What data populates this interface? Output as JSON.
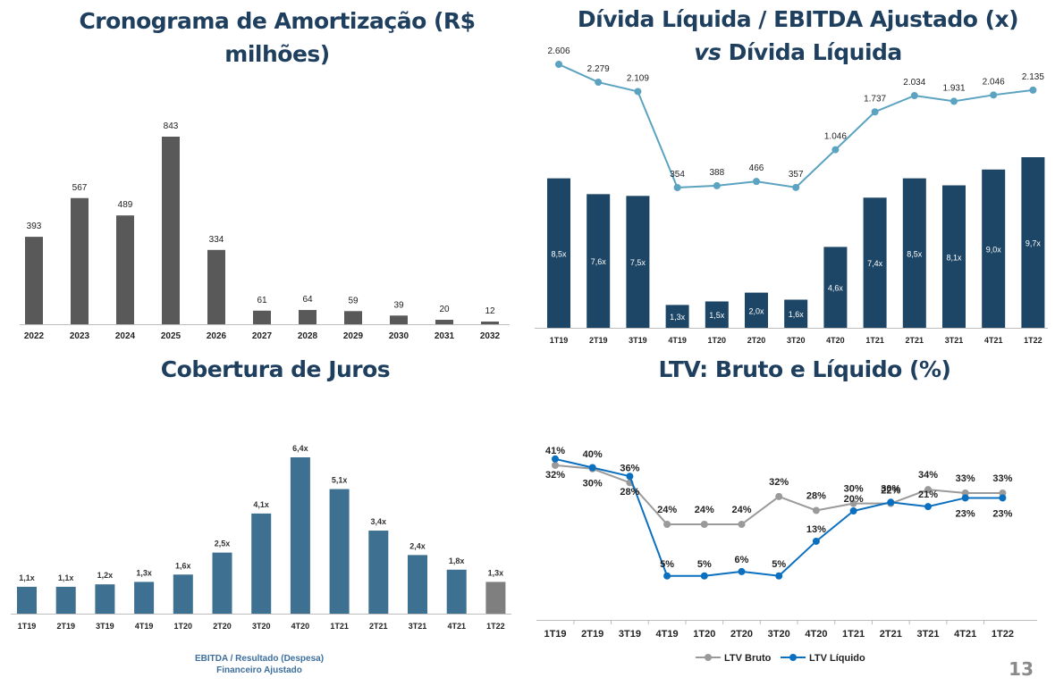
{
  "page_number": "13",
  "colors": {
    "title": "#1f3f5f",
    "amort_bar": "#595959",
    "div_bar": "#1d4666",
    "div_line": "#5ba3c0",
    "juros_bar": "#3d7091",
    "juros_last": "#7f7f7f",
    "ltv_bruto": "#9a9a9a",
    "ltv_liquido": "#0b6fbf"
  },
  "titles": {
    "amort": "Cronograma de Amortização (R$ milhões)",
    "div_part1": "Dívida Líquida / EBITDA Ajustado (x) ",
    "div_vs": "vs",
    "div_part2": " Dívida Líquida",
    "juros": "Cobertura de Juros",
    "ltv": "LTV: Bruto e Líquido (%)"
  },
  "juros_note": "EBITDA / Resultado (Despesa) Financeiro Ajustado",
  "chart_data": [
    {
      "type": "bar",
      "title": "Cronograma de Amortização (R$ milhões)",
      "categories": [
        "2022",
        "2023",
        "2024",
        "2025",
        "2026",
        "2027",
        "2028",
        "2029",
        "2030",
        "2031",
        "2032"
      ],
      "values": [
        393,
        567,
        489,
        843,
        334,
        61,
        64,
        59,
        39,
        20,
        12
      ],
      "labels": [
        "393",
        "567",
        "489",
        "843",
        "334",
        "61",
        "64",
        "59",
        "39",
        "20",
        "12"
      ]
    },
    {
      "type": "bar",
      "title": "Dívida Líquida / EBITDA Ajustado (x) vs Dívida Líquida",
      "categories": [
        "1T19",
        "2T19",
        "3T19",
        "4T19",
        "1T20",
        "2T20",
        "3T20",
        "4T20",
        "1T21",
        "2T21",
        "3T21",
        "4T21",
        "1T22"
      ],
      "series": [
        {
          "kind": "bar",
          "values": [
            8.5,
            7.6,
            7.5,
            1.3,
            1.5,
            2.0,
            1.6,
            4.6,
            7.4,
            8.5,
            8.1,
            9.0,
            9.7
          ],
          "labels": [
            "8,5x",
            "7,6x",
            "7,5x",
            "1,3x",
            "1,5x",
            "2,0x",
            "1,6x",
            "4,6x",
            "7,4x",
            "8,5x",
            "8,1x",
            "9,0x",
            "9,7x"
          ]
        },
        {
          "kind": "line",
          "values": [
            2606,
            2279,
            2109,
            354,
            388,
            466,
            357,
            1046,
            1737,
            2034,
            1931,
            2046,
            2135
          ],
          "labels": [
            "2.606",
            "2.279",
            "2.109",
            "354",
            "388",
            "466",
            "357",
            "1.046",
            "1.737",
            "2.034",
            "1.931",
            "2.046",
            "2.135"
          ]
        }
      ]
    },
    {
      "type": "bar",
      "title": "Cobertura de Juros",
      "categories": [
        "1T19",
        "2T19",
        "3T19",
        "4T19",
        "1T20",
        "2T20",
        "3T20",
        "4T20",
        "1T21",
        "2T21",
        "3T21",
        "4T21",
        "1T22"
      ],
      "values": [
        1.1,
        1.1,
        1.2,
        1.3,
        1.6,
        2.5,
        4.1,
        6.4,
        5.1,
        3.4,
        2.4,
        1.8,
        1.3
      ],
      "labels": [
        "1,1x",
        "1,1x",
        "1,2x",
        "1,3x",
        "1,6x",
        "2,5x",
        "4,1x",
        "6,4x",
        "5,1x",
        "3,4x",
        "2,4x",
        "1,8x",
        "1,3x"
      ]
    },
    {
      "type": "line",
      "title": "LTV: Bruto e Líquido (%)",
      "categories": [
        "1T19",
        "2T19",
        "3T19",
        "4T19",
        "1T20",
        "2T20",
        "3T20",
        "4T20",
        "1T21",
        "2T21",
        "3T21",
        "4T21",
        "1T22"
      ],
      "series": [
        {
          "name": "LTV Bruto",
          "values": [
            41,
            40,
            36,
            24,
            24,
            24,
            32,
            28,
            30,
            30,
            34,
            33,
            33
          ],
          "labels": [
            "41%",
            "40%",
            "36%",
            "24%",
            "24%",
            "24%",
            "32%",
            "28%",
            "30%",
            "30%",
            "34%",
            "33%",
            "33%"
          ]
        },
        {
          "name": "LTV Líquido",
          "values": [
            32,
            30,
            28,
            5,
            5,
            6,
            5,
            13,
            20,
            22,
            21,
            23,
            23
          ],
          "labels": [
            "32%",
            "30%",
            "28%",
            "5%",
            "5%",
            "6%",
            "5%",
            "13%",
            "20%",
            "22%",
            "21%",
            "23%",
            "23%"
          ]
        }
      ],
      "legend": "bottom"
    }
  ]
}
